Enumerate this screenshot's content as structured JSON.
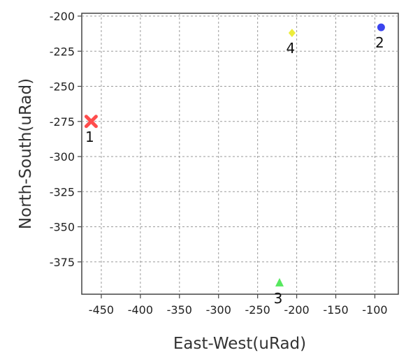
{
  "chart_data": {
    "type": "scatter",
    "xlabel": "East-West(uRad)",
    "ylabel": "North-South(uRad)",
    "xlim": [
      -475,
      -70
    ],
    "ylim": [
      -398,
      -198
    ],
    "x_ticks": [
      -450,
      -400,
      -350,
      -300,
      -250,
      -200,
      -150,
      -100
    ],
    "y_ticks": [
      -200,
      -225,
      -250,
      -275,
      -300,
      -325,
      -350,
      -375
    ],
    "grid": true,
    "points": [
      {
        "label": "1",
        "x": -463,
        "y": -275,
        "marker": "cross",
        "color": "#ff4d4d"
      },
      {
        "label": "2",
        "x": -92,
        "y": -208,
        "marker": "circle",
        "color": "#3b44ee"
      },
      {
        "label": "3",
        "x": -222,
        "y": -390,
        "marker": "triangle",
        "color": "#57e85f"
      },
      {
        "label": "4",
        "x": -206,
        "y": -212,
        "marker": "diamond",
        "color": "#ecec3a"
      }
    ]
  }
}
